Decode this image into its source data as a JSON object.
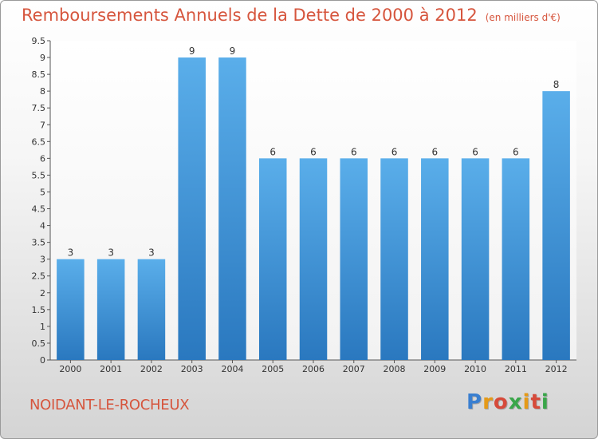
{
  "title": "Remboursements Annuels de la Dette de 2000 à 2012",
  "subtitle": "(en milliers d'€)",
  "commune": "NOIDANT-LE-ROCHEUX",
  "brand": {
    "letters": [
      "P",
      "r",
      "o",
      "x",
      "i",
      "t",
      "i"
    ],
    "colors": [
      "#3a7fd0",
      "#e59a18",
      "#d64a3a",
      "#3aa64a",
      "#e59a18",
      "#d64a3a",
      "#3aa64a"
    ]
  },
  "chart_data": {
    "type": "bar",
    "categories": [
      "2000",
      "2001",
      "2002",
      "2003",
      "2004",
      "2005",
      "2006",
      "2007",
      "2008",
      "2009",
      "2010",
      "2011",
      "2012"
    ],
    "values": [
      3,
      3,
      3,
      9,
      9,
      6,
      6,
      6,
      6,
      6,
      6,
      6,
      8
    ],
    "value_labels": [
      "3",
      "3",
      "3",
      "9",
      "9",
      "6",
      "6",
      "6",
      "6",
      "6",
      "6",
      "6",
      "8"
    ],
    "ylim": [
      0,
      9.5
    ],
    "yticks": [
      "0",
      "0.5",
      "1",
      "1.5",
      "2",
      "2.5",
      "3",
      "3.5",
      "4",
      "4.5",
      "5",
      "5.5",
      "6",
      "6.5",
      "7",
      "7.5",
      "8",
      "8.5",
      "9",
      "9.5"
    ],
    "grid": false,
    "bar_color": "#3b8fd8"
  }
}
